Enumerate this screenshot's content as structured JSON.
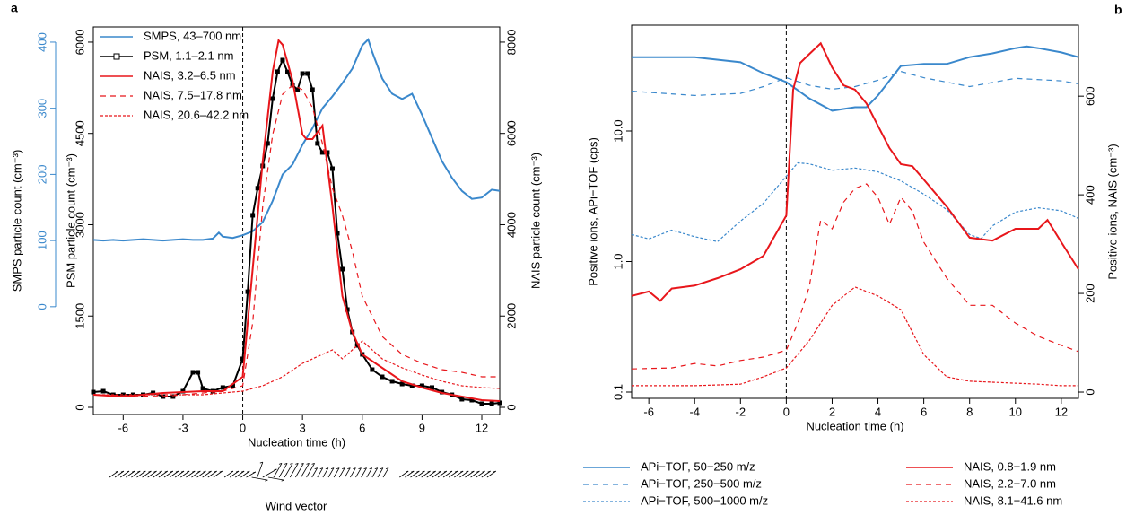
{
  "chart_data": [
    {
      "type": "line",
      "panel_label": "a",
      "xlabel": "Nucleation time (h)",
      "xlim": [
        -7.5,
        12.9
      ],
      "xticks": [
        -6,
        -3,
        0,
        3,
        6,
        9,
        12
      ],
      "ylabel": "PSM particle count (cm⁻³)",
      "ylim": [
        -118,
        6250
      ],
      "yticks": [
        0,
        1500,
        3000,
        4500,
        6000
      ],
      "y2label": "NAIS particle count (cm⁻³)",
      "y2lim": [
        -157,
        8333
      ],
      "y2ticks": [
        0,
        2000,
        4000,
        6000,
        8000
      ],
      "y3label": "SMPS particle count (cm⁻³)",
      "y3lim": [
        -163,
        423
      ],
      "y3ticks": [
        0,
        100,
        200,
        300,
        400
      ],
      "y3color": "#3a88cc",
      "vline": 0,
      "legend": "upper left",
      "annotation": "Wind vector",
      "series": [
        {
          "name": "SMPS, 43–700 nm",
          "color": "#3a88cc",
          "dash": "solid",
          "axis": "y3",
          "x": [
            -7.5,
            -7,
            -6.5,
            -6,
            -5.5,
            -5,
            -4.5,
            -4,
            -3.5,
            -3,
            -2.5,
            -2,
            -1.5,
            -1.2,
            -1,
            -0.5,
            0,
            0.5,
            1,
            1.5,
            2,
            2.5,
            3,
            3.5,
            4,
            4.5,
            5,
            5.5,
            6,
            6.3,
            6.5,
            7,
            7.5,
            8,
            8.5,
            9,
            9.5,
            10,
            10.5,
            11,
            11.5,
            12,
            12.5,
            12.9
          ],
          "values": [
            101,
            100,
            101,
            100,
            101,
            102,
            101,
            100,
            101,
            102,
            101,
            101,
            103,
            112,
            106,
            104,
            108,
            114,
            128,
            160,
            200,
            215,
            245,
            270,
            300,
            318,
            338,
            360,
            395,
            404,
            385,
            345,
            322,
            314,
            322,
            290,
            255,
            220,
            195,
            175,
            163,
            165,
            177,
            175
          ]
        },
        {
          "name": "PSM, 1.1–2.1 nm",
          "color": "#000000",
          "dash": "solid",
          "axis": "y",
          "marker": "square",
          "x": [
            -7.5,
            -7,
            -6.5,
            -6,
            -5.5,
            -5,
            -4.5,
            -4,
            -3.5,
            -3,
            -2.5,
            -2.25,
            -2,
            -1.5,
            -1,
            -0.5,
            0,
            0.25,
            0.5,
            0.75,
            1,
            1.25,
            1.5,
            1.75,
            2,
            2.25,
            2.5,
            2.75,
            3,
            3.25,
            3.5,
            3.75,
            4,
            4.25,
            4.5,
            4.75,
            5,
            5.25,
            5.5,
            5.75,
            6,
            6.5,
            7,
            7.5,
            8,
            8.5,
            9,
            9.5,
            10,
            10.5,
            11,
            11.5,
            12,
            12.5,
            12.9
          ],
          "values": [
            250,
            265,
            206,
            206,
            206,
            206,
            236,
            177,
            177,
            265,
            575,
            575,
            310,
            265,
            325,
            354,
            796,
            1900,
            3155,
            3600,
            3966,
            4335,
            5071,
            5514,
            5705,
            5510,
            5293,
            5219,
            5484,
            5484,
            5219,
            4335,
            4187,
            4187,
            3921,
            2860,
            2270,
            1607,
            1238,
            1017,
            870,
            619,
            501,
            428,
            383,
            354,
            354,
            325,
            250,
            206,
            133,
            118,
            59,
            59,
            74
          ]
        },
        {
          "name": "NAIS, 3.2–6.5 nm",
          "color": "#e8161b",
          "dash": "solid",
          "axis": "y2",
          "x": [
            -7.5,
            -6,
            -4,
            -2,
            -1,
            0,
            0.5,
            1,
            1.5,
            1.8,
            2,
            2.5,
            3,
            3.2,
            3.5,
            4,
            4.5,
            5,
            5.5,
            6,
            7,
            8,
            9,
            10,
            11,
            12,
            12.9
          ],
          "values": [
            275,
            236,
            315,
            354,
            354,
            668,
            3027,
            5386,
            7351,
            8039,
            7941,
            7155,
            5975,
            5877,
            5877,
            6172,
            4403,
            2437,
            1651,
            1160,
            865,
            570,
            432,
            315,
            236,
            157,
            138
          ]
        },
        {
          "name": "NAIS, 7.5–17.8 nm",
          "color": "#e8161b",
          "dash": "dashed",
          "axis": "y2",
          "x": [
            -7.5,
            -4,
            -2,
            -1,
            0,
            0.5,
            1,
            1.5,
            2,
            2.5,
            3,
            3.5,
            4,
            4.5,
            5,
            5.5,
            6,
            7,
            8,
            9,
            10,
            11,
            12,
            12.9
          ],
          "values": [
            275,
            236,
            315,
            354,
            472,
            1848,
            4403,
            5975,
            6860,
            7057,
            6958,
            6565,
            5779,
            4796,
            4206,
            3420,
            2437,
            1553,
            1160,
            963,
            826,
            767,
            668,
            668
          ]
        },
        {
          "name": "NAIS, 20.6–42.2 nm",
          "color": "#e8161b",
          "dash": "dotted",
          "axis": "y2",
          "x": [
            -7.5,
            -2,
            0,
            1,
            2,
            3,
            4,
            4.5,
            5,
            5.5,
            6,
            7,
            8,
            9,
            10,
            11,
            12,
            12.9
          ],
          "values": [
            275,
            275,
            354,
            472,
            668,
            963,
            1160,
            1258,
            1061,
            1258,
            1455,
            1061,
            865,
            708,
            570,
            472,
            432,
            413
          ]
        }
      ]
    },
    {
      "type": "line",
      "panel_label": "b",
      "xlabel": "Nucleation time (h)",
      "xlim": [
        -6.75,
        12.75
      ],
      "xticks": [
        -6,
        -4,
        -2,
        0,
        2,
        4,
        6,
        8,
        10,
        12
      ],
      "ylabel": "Positive ions, APi−TOF (cps)",
      "ylim": [
        0.0895,
        64.7
      ],
      "ylog": true,
      "yticks": [
        0.1,
        {
          "value": 1,
          "label": "1.0"
        },
        {
          "value": 10,
          "label": "10.0"
        }
      ],
      "y2label": "Positive ions, NAIS (cm⁻³)",
      "y2lim": [
        -12.7,
        744
      ],
      "y2ticks": [
        0,
        200,
        400,
        600
      ],
      "vline": 0,
      "legend": "below",
      "series": [
        {
          "name": "APi−TOF, 50−250 m/z",
          "color": "#3a88cc",
          "dash": "solid",
          "axis": "y",
          "x": [
            -6.75,
            -4,
            -2,
            -1,
            0,
            1,
            2,
            3,
            3.5,
            4,
            5,
            6,
            7,
            8,
            9,
            10,
            10.5,
            11,
            12,
            12.75
          ],
          "values": [
            36.8,
            36.8,
            33.6,
            27.7,
            23.7,
            17.8,
            14.3,
            15.2,
            15.2,
            18.7,
            31.5,
            32.6,
            32.6,
            36.8,
            39.3,
            43.1,
            44.5,
            43.1,
            40,
            36.8
          ]
        },
        {
          "name": "APi−TOF, 250−500 m/z",
          "color": "#3a88cc",
          "dash": "dashed",
          "axis": "y",
          "x": [
            -6.75,
            -4,
            -2,
            -1,
            0,
            1,
            2,
            3,
            4,
            5,
            6,
            8,
            10,
            12,
            12.75
          ],
          "values": [
            20.2,
            18.7,
            19.4,
            21.9,
            25.6,
            22.4,
            20.9,
            21.9,
            24.5,
            28.6,
            25.6,
            21.9,
            25.3,
            24.2,
            23
          ]
        },
        {
          "name": "APi−TOF, 500−1000 m/z",
          "color": "#3a88cc",
          "dash": "dotted",
          "axis": "y",
          "x": [
            -6.75,
            -6,
            -5,
            -4,
            -3,
            -2,
            -1,
            0,
            0.5,
            1,
            2,
            3,
            4,
            5,
            6,
            7,
            8,
            8.5,
            9,
            10,
            11,
            12,
            12.75
          ],
          "values": [
            1.61,
            1.49,
            1.74,
            1.55,
            1.42,
            2.04,
            2.79,
            4.5,
            5.7,
            5.6,
            5.0,
            5.2,
            4.87,
            4.15,
            3.28,
            2.5,
            1.61,
            1.5,
            1.88,
            2.39,
            2.58,
            2.45,
            2.14
          ]
        },
        {
          "name": "NAIS, 0.8−1.9 nm",
          "color": "#e8161b",
          "dash": "solid",
          "axis": "y2",
          "x": [
            -6.75,
            -6,
            -5.5,
            -5,
            -4,
            -3,
            -2,
            -1,
            0,
            0.3,
            0.6,
            1,
            1.5,
            2,
            2.5,
            3,
            3.5,
            4,
            4.5,
            5,
            5.5,
            6,
            7,
            8,
            9,
            10,
            11,
            11.4,
            12,
            12.75
          ],
          "values": [
            195,
            204,
            185,
            210,
            216,
            231,
            249,
            276,
            358,
            613,
            667,
            685,
            707,
            658,
            622,
            613,
            585,
            540,
            495,
            462,
            458,
            431,
            376,
            313,
            307,
            331,
            331,
            349,
            304,
            249
          ]
        },
        {
          "name": "NAIS, 2.2−7.0 nm",
          "color": "#e8161b",
          "dash": "dashed",
          "axis": "y2",
          "x": [
            -6.75,
            -5,
            -4,
            -3,
            -2,
            -1,
            0,
            0.5,
            1,
            1.5,
            2,
            2.5,
            3,
            3.5,
            4,
            4.5,
            5,
            5.5,
            6,
            7,
            8,
            9,
            10,
            11,
            12,
            12.75
          ],
          "values": [
            47,
            49,
            58,
            53,
            64,
            71,
            85,
            140,
            213,
            349,
            331,
            385,
            413,
            422,
            395,
            340,
            395,
            367,
            304,
            231,
            176,
            176,
            140,
            113,
            95,
            82
          ]
        },
        {
          "name": "NAIS, 8.1−41.6 nm",
          "color": "#e8161b",
          "dash": "dotted",
          "axis": "y2",
          "x": [
            -6.75,
            -4,
            -2,
            -1,
            0,
            1,
            2,
            3,
            3.5,
            4,
            5,
            6,
            7,
            8,
            10,
            11,
            12,
            12.75
          ],
          "values": [
            13,
            13,
            16,
            31,
            49,
            104,
            176,
            213,
            204,
            195,
            167,
            76,
            31,
            22,
            18,
            16,
            13,
            13
          ]
        }
      ]
    }
  ]
}
